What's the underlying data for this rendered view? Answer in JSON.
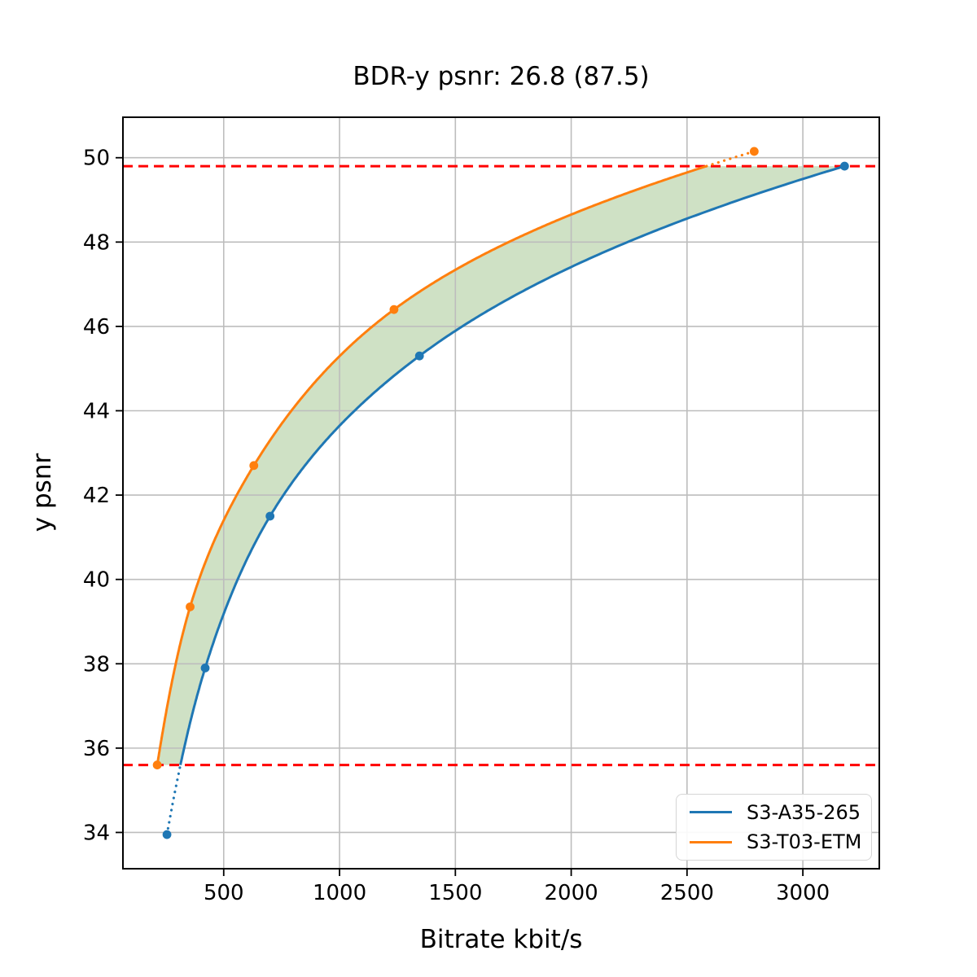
{
  "chart_data": {
    "type": "line",
    "title": "BDR-y psnr: 26.8 (87.5)",
    "xlabel": "Bitrate kbit/s",
    "ylabel": "y psnr",
    "xlim": [
      65,
      3330
    ],
    "ylim": [
      33.14,
      50.96
    ],
    "xticks": [
      500,
      1000,
      1500,
      2000,
      2500,
      3000
    ],
    "yticks": [
      34,
      36,
      38,
      40,
      42,
      44,
      46,
      48,
      50
    ],
    "grid": true,
    "grid_color": "#bdbdbd",
    "spine_color": "#000000",
    "background": "#ffffff",
    "legend_position": "lower right",
    "series": [
      {
        "name": "S3-A35-265",
        "color": "#1f77b4",
        "marker": "circle",
        "points": [
          [
            255,
            33.95
          ],
          [
            420,
            37.9
          ],
          [
            700,
            41.5
          ],
          [
            1345,
            45.3
          ],
          [
            3180,
            49.8
          ]
        ]
      },
      {
        "name": "S3-T03-ETM",
        "color": "#ff7f0e",
        "marker": "circle",
        "points": [
          [
            213,
            35.6
          ],
          [
            355,
            39.35
          ],
          [
            630,
            42.7
          ],
          [
            1235,
            46.4
          ],
          [
            2790,
            50.15
          ]
        ]
      }
    ],
    "overlap_band": {
      "lower_psnr": 35.6,
      "upper_psnr": 49.8,
      "line_color": "#ff0000",
      "line_style": "dashed",
      "fill_color": "#cfe1c5"
    }
  }
}
